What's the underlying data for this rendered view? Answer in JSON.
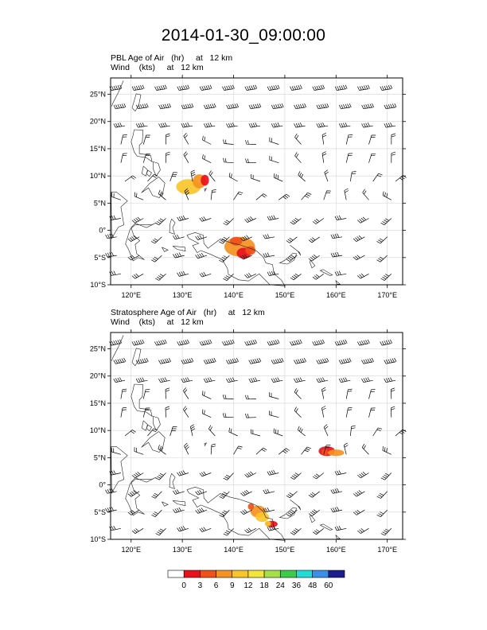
{
  "title": "2014-01-30_09:00:00",
  "panels": [
    {
      "line1": {
        "field": "PBL Age of Air",
        "units": "(hr)",
        "level": "at   12 km"
      },
      "line2": {
        "field": "Wind",
        "units": "(kts)",
        "level": "at   12 km"
      }
    },
    {
      "line1": {
        "field": "Stratosphere Age of Air",
        "units": "(hr)",
        "level": "at   12 km"
      },
      "line2": {
        "field": "Wind",
        "units": "(kts)",
        "level": "at   12 km"
      }
    }
  ],
  "chart_data": {
    "type": "map",
    "xlim": [
      116,
      173
    ],
    "ylim": [
      -10,
      28
    ],
    "x_ticks": [
      120,
      130,
      140,
      150,
      160,
      170
    ],
    "x_tick_labels": [
      "120°E",
      "130°E",
      "140°E",
      "150°E",
      "160°E",
      "170°E"
    ],
    "y_ticks": [
      25,
      20,
      15,
      10,
      5,
      0,
      -5,
      -10
    ],
    "y_tick_labels": [
      "25°N",
      "20°N",
      "15°N",
      "10°N",
      "5°N",
      "0°",
      "5°S",
      "10°S"
    ],
    "grid": true,
    "colorbar": {
      "levels": [
        "0",
        "3",
        "6",
        "9",
        "12",
        "18",
        "24",
        "36",
        "48",
        "60"
      ],
      "colors": [
        "#ffffff",
        "#e8121c",
        "#f0501a",
        "#f59322",
        "#f8c52a",
        "#f4e53c",
        "#a6e048",
        "#3ccc4a",
        "#22dcd6",
        "#3a90e6",
        "#1b1e8c"
      ]
    },
    "plumes": [
      [
        {
          "lon": 132.0,
          "lat": 8.2,
          "age": "6-12"
        },
        {
          "lon": 134.5,
          "lat": 9.0,
          "age": "0-6"
        },
        {
          "lon": 141.5,
          "lat": -3.5,
          "age": "0-9"
        }
      ],
      [
        {
          "lon": 158.3,
          "lat": 6.1,
          "age": "0-9"
        },
        {
          "lon": 145.0,
          "lat": -5.0,
          "age": "3-12"
        },
        {
          "lon": 147.5,
          "lat": -7.0,
          "age": "0-9"
        }
      ]
    ]
  }
}
